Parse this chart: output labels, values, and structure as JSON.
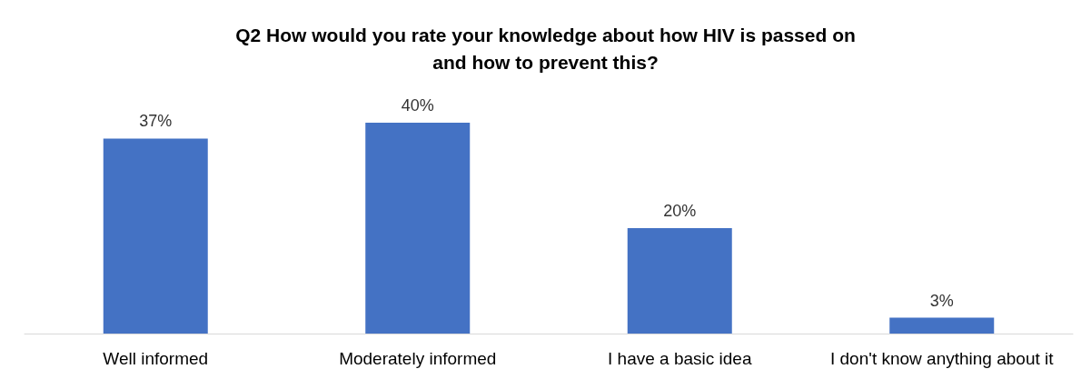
{
  "chart_data": {
    "type": "bar",
    "title": "Q2 How would you rate your knowledge about how HIV is passed on\nand how to prevent this?",
    "categories": [
      "Well informed",
      "Moderately informed",
      "I have a basic idea",
      "I don't know anything about it"
    ],
    "values": [
      37,
      40,
      20,
      3
    ],
    "value_labels": [
      "37%",
      "40%",
      "20%",
      "3%"
    ],
    "color": "#4472c4"
  }
}
